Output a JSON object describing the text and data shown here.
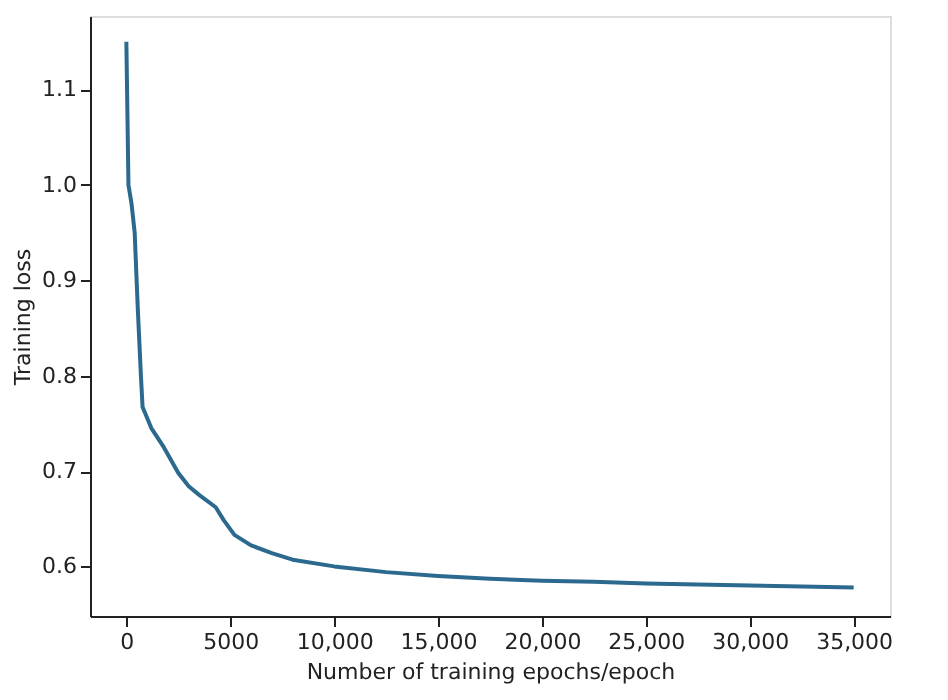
{
  "chart_data": {
    "type": "line",
    "xlabel": "Number of training epochs/epoch",
    "ylabel": "Training loss",
    "xlim": [
      -1750,
      36750
    ],
    "ylim": [
      0.548,
      1.177
    ],
    "xticks": [
      0,
      {
        "value": 5000,
        "label": "5000"
      },
      {
        "value": 10000,
        "label": "10,000"
      },
      {
        "value": 15000,
        "label": "15,000"
      },
      {
        "value": 20000,
        "label": "20,000"
      },
      {
        "value": 25000,
        "label": "25,000"
      },
      {
        "value": 30000,
        "label": "30,000"
      },
      {
        "value": 35000,
        "label": "35,000"
      }
    ],
    "yticks": [
      0.6,
      0.7,
      0.8,
      0.9,
      {
        "value": 1.0,
        "label": "1.0"
      },
      1.1
    ],
    "grid": false,
    "series": [
      {
        "color": "#2b6a8e",
        "x": [
          0,
          100,
          250,
          400,
          550,
          700,
          780,
          1200,
          1800,
          2500,
          3000,
          3500,
          4300,
          4700,
          5200,
          6000,
          7000,
          8000,
          10000,
          12500,
          15000,
          17500,
          20000,
          22500,
          25000,
          27500,
          30000,
          32500,
          35000
        ],
        "values": [
          1.15,
          1.0,
          0.98,
          0.95,
          0.87,
          0.8,
          0.767,
          0.745,
          0.725,
          0.698,
          0.684,
          0.675,
          0.662,
          0.648,
          0.633,
          0.622,
          0.614,
          0.607,
          0.6,
          0.594,
          0.59,
          0.587,
          0.585,
          0.584,
          0.582,
          0.581,
          0.58,
          0.579,
          0.578
        ]
      }
    ]
  }
}
